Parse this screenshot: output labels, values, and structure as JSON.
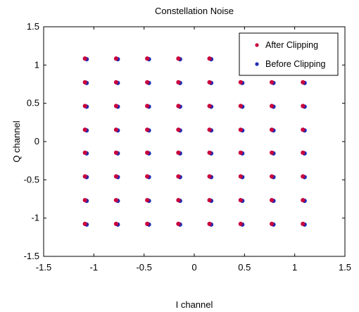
{
  "chart_data": {
    "type": "scatter",
    "title": "Constellation Noise",
    "xlabel": "I channel",
    "ylabel": "Q channel",
    "xlim": [
      -1.5,
      1.5
    ],
    "ylim": [
      -1.5,
      1.5
    ],
    "xticks": [
      -1.5,
      -1,
      -0.5,
      0,
      0.5,
      1,
      1.5
    ],
    "yticks": [
      -1.5,
      -1,
      -0.5,
      0,
      0.5,
      1,
      1.5
    ],
    "xtick_labels": [
      "-1.5",
      "-1",
      "-0.5",
      "0",
      "0.5",
      "1",
      "1.5"
    ],
    "ytick_labels": [
      "-1.5",
      "-1",
      "-0.5",
      "0",
      "0.5",
      "1",
      "1.5"
    ],
    "grid": false,
    "legend_position": "top-right",
    "series": [
      {
        "name": "After Clipping",
        "color": "#c8003c",
        "marker": "dot",
        "points": [
          [
            -1.08,
            -1.08
          ],
          [
            -0.77,
            -1.08
          ],
          [
            -0.46,
            -1.08
          ],
          [
            -0.15,
            -1.08
          ],
          [
            0.16,
            -1.08
          ],
          [
            0.47,
            -1.08
          ],
          [
            0.78,
            -1.08
          ],
          [
            1.09,
            -1.08
          ],
          [
            -1.08,
            -0.77
          ],
          [
            -0.77,
            -0.77
          ],
          [
            -0.46,
            -0.77
          ],
          [
            -0.15,
            -0.77
          ],
          [
            0.16,
            -0.77
          ],
          [
            0.47,
            -0.77
          ],
          [
            0.78,
            -0.77
          ],
          [
            1.09,
            -0.77
          ],
          [
            -1.08,
            -0.46
          ],
          [
            -0.77,
            -0.46
          ],
          [
            -0.46,
            -0.46
          ],
          [
            -0.15,
            -0.46
          ],
          [
            0.16,
            -0.46
          ],
          [
            0.47,
            -0.46
          ],
          [
            0.78,
            -0.46
          ],
          [
            1.09,
            -0.46
          ],
          [
            -1.08,
            -0.15
          ],
          [
            -0.77,
            -0.15
          ],
          [
            -0.46,
            -0.15
          ],
          [
            -0.15,
            -0.15
          ],
          [
            0.16,
            -0.15
          ],
          [
            0.47,
            -0.15
          ],
          [
            0.78,
            -0.15
          ],
          [
            1.09,
            -0.15
          ],
          [
            -1.08,
            0.15
          ],
          [
            -0.77,
            0.15
          ],
          [
            -0.46,
            0.15
          ],
          [
            -0.15,
            0.15
          ],
          [
            0.16,
            0.15
          ],
          [
            0.47,
            0.15
          ],
          [
            0.78,
            0.15
          ],
          [
            1.09,
            0.15
          ],
          [
            -1.08,
            0.46
          ],
          [
            -0.77,
            0.46
          ],
          [
            -0.46,
            0.46
          ],
          [
            -0.15,
            0.46
          ],
          [
            0.16,
            0.46
          ],
          [
            0.47,
            0.46
          ],
          [
            0.78,
            0.46
          ],
          [
            1.09,
            0.46
          ],
          [
            -1.08,
            0.77
          ],
          [
            -0.77,
            0.77
          ],
          [
            -0.46,
            0.77
          ],
          [
            -0.15,
            0.77
          ],
          [
            0.16,
            0.77
          ],
          [
            0.47,
            0.77
          ],
          [
            0.78,
            0.77
          ],
          [
            1.09,
            0.77
          ],
          [
            -1.08,
            1.08
          ],
          [
            -0.77,
            1.08
          ],
          [
            -0.46,
            1.08
          ],
          [
            -0.15,
            1.08
          ],
          [
            0.16,
            1.08
          ]
        ]
      },
      {
        "name": "Before Clipping",
        "color": "#1f2bb4",
        "marker": "dot",
        "points": [
          [
            -1.08,
            -1.08
          ],
          [
            -0.77,
            -1.08
          ],
          [
            -0.46,
            -1.08
          ],
          [
            -0.15,
            -1.08
          ],
          [
            0.16,
            -1.08
          ],
          [
            0.47,
            -1.08
          ],
          [
            0.78,
            -1.08
          ],
          [
            1.09,
            -1.08
          ],
          [
            -1.08,
            -0.77
          ],
          [
            -0.77,
            -0.77
          ],
          [
            -0.46,
            -0.77
          ],
          [
            -0.15,
            -0.77
          ],
          [
            0.16,
            -0.77
          ],
          [
            0.47,
            -0.77
          ],
          [
            0.78,
            -0.77
          ],
          [
            1.09,
            -0.77
          ],
          [
            -1.08,
            -0.46
          ],
          [
            -0.77,
            -0.46
          ],
          [
            -0.46,
            -0.46
          ],
          [
            -0.15,
            -0.46
          ],
          [
            0.16,
            -0.46
          ],
          [
            0.47,
            -0.46
          ],
          [
            0.78,
            -0.46
          ],
          [
            1.09,
            -0.46
          ],
          [
            -1.08,
            -0.15
          ],
          [
            -0.77,
            -0.15
          ],
          [
            -0.46,
            -0.15
          ],
          [
            -0.15,
            -0.15
          ],
          [
            0.16,
            -0.15
          ],
          [
            0.47,
            -0.15
          ],
          [
            0.78,
            -0.15
          ],
          [
            1.09,
            -0.15
          ],
          [
            -1.08,
            0.15
          ],
          [
            -0.77,
            0.15
          ],
          [
            -0.46,
            0.15
          ],
          [
            -0.15,
            0.15
          ],
          [
            0.16,
            0.15
          ],
          [
            0.47,
            0.15
          ],
          [
            0.78,
            0.15
          ],
          [
            1.09,
            0.15
          ],
          [
            -1.08,
            0.46
          ],
          [
            -0.77,
            0.46
          ],
          [
            -0.46,
            0.46
          ],
          [
            -0.15,
            0.46
          ],
          [
            0.16,
            0.46
          ],
          [
            0.47,
            0.46
          ],
          [
            0.78,
            0.46
          ],
          [
            1.09,
            0.46
          ],
          [
            -1.08,
            0.77
          ],
          [
            -0.77,
            0.77
          ],
          [
            -0.46,
            0.77
          ],
          [
            -0.15,
            0.77
          ],
          [
            0.16,
            0.77
          ],
          [
            0.47,
            0.77
          ],
          [
            0.78,
            0.77
          ],
          [
            1.09,
            0.77
          ],
          [
            -1.08,
            1.08
          ],
          [
            -0.77,
            1.08
          ],
          [
            -0.46,
            1.08
          ],
          [
            -0.15,
            1.08
          ],
          [
            0.16,
            1.08
          ]
        ]
      }
    ]
  }
}
